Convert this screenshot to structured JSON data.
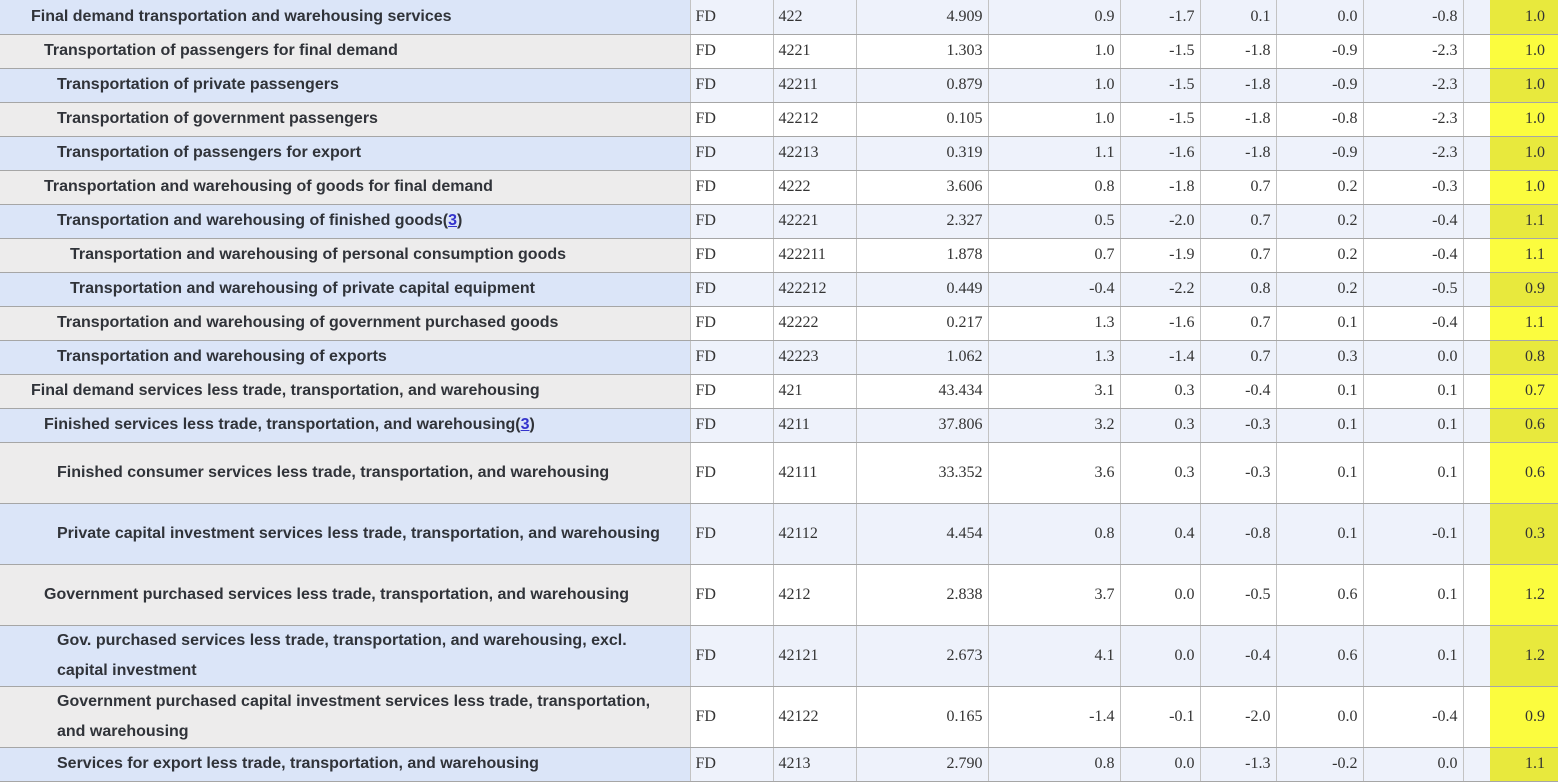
{
  "colors": {
    "row_name_blue": "#dbe5f8",
    "row_name_gray": "#edecec",
    "cell_blue": "#eef2fb",
    "cell_white": "#ffffff",
    "highlight_on_blue": "#e8e93d",
    "highlight_on_white": "#fbfc3e",
    "border_horizontal": "#a6a6a6",
    "border_vertical": "#c3c3c3",
    "item_text": "#303339",
    "data_text": "#333333",
    "footnote_link": "#3333cc"
  },
  "table": {
    "rows": [
      {
        "name": "Final demand transportation and warehousing services",
        "indent": 1,
        "group": "FD",
        "code": "422",
        "relative_importance": "4.909",
        "pct_changes": [
          "0.9",
          "-1.7",
          "0.1",
          "0.0",
          "-0.8"
        ],
        "highlighted": "1.0",
        "footnote": null
      },
      {
        "name": "Transportation of passengers for final demand",
        "indent": 2,
        "group": "FD",
        "code": "4221",
        "relative_importance": "1.303",
        "pct_changes": [
          "1.0",
          "-1.5",
          "-1.8",
          "-0.9",
          "-2.3"
        ],
        "highlighted": "1.0",
        "footnote": null
      },
      {
        "name": "Transportation of private passengers",
        "indent": 3,
        "group": "FD",
        "code": "42211",
        "relative_importance": "0.879",
        "pct_changes": [
          "1.0",
          "-1.5",
          "-1.8",
          "-0.9",
          "-2.3"
        ],
        "highlighted": "1.0",
        "footnote": null
      },
      {
        "name": "Transportation of government passengers",
        "indent": 3,
        "group": "FD",
        "code": "42212",
        "relative_importance": "0.105",
        "pct_changes": [
          "1.0",
          "-1.5",
          "-1.8",
          "-0.8",
          "-2.3"
        ],
        "highlighted": "1.0",
        "footnote": null
      },
      {
        "name": "Transportation of passengers for export",
        "indent": 3,
        "group": "FD",
        "code": "42213",
        "relative_importance": "0.319",
        "pct_changes": [
          "1.1",
          "-1.6",
          "-1.8",
          "-0.9",
          "-2.3"
        ],
        "highlighted": "1.0",
        "footnote": null
      },
      {
        "name": "Transportation and warehousing of goods for final demand",
        "indent": 2,
        "group": "FD",
        "code": "4222",
        "relative_importance": "3.606",
        "pct_changes": [
          "0.8",
          "-1.8",
          "0.7",
          "0.2",
          "-0.3"
        ],
        "highlighted": "1.0",
        "footnote": null
      },
      {
        "name": "Transportation and warehousing of finished goods",
        "indent": 3,
        "group": "FD",
        "code": "42221",
        "relative_importance": "2.327",
        "pct_changes": [
          "0.5",
          "-2.0",
          "0.7",
          "0.2",
          "-0.4"
        ],
        "highlighted": "1.1",
        "footnote": "3"
      },
      {
        "name": "Transportation and warehousing of personal consumption goods",
        "indent": 4,
        "group": "FD",
        "code": "422211",
        "relative_importance": "1.878",
        "pct_changes": [
          "0.7",
          "-1.9",
          "0.7",
          "0.2",
          "-0.4"
        ],
        "highlighted": "1.1",
        "footnote": null
      },
      {
        "name": "Transportation and warehousing of private capital equipment",
        "indent": 4,
        "group": "FD",
        "code": "422212",
        "relative_importance": "0.449",
        "pct_changes": [
          "-0.4",
          "-2.2",
          "0.8",
          "0.2",
          "-0.5"
        ],
        "highlighted": "0.9",
        "footnote": null
      },
      {
        "name": "Transportation and warehousing of government purchased goods",
        "indent": 3,
        "group": "FD",
        "code": "42222",
        "relative_importance": "0.217",
        "pct_changes": [
          "1.3",
          "-1.6",
          "0.7",
          "0.1",
          "-0.4"
        ],
        "highlighted": "1.1",
        "footnote": null
      },
      {
        "name": "Transportation and warehousing of exports",
        "indent": 3,
        "group": "FD",
        "code": "42223",
        "relative_importance": "1.062",
        "pct_changes": [
          "1.3",
          "-1.4",
          "0.7",
          "0.3",
          "0.0"
        ],
        "highlighted": "0.8",
        "footnote": null
      },
      {
        "name": "Final demand services less trade, transportation, and warehousing",
        "indent": 1,
        "group": "FD",
        "code": "421",
        "relative_importance": "43.434",
        "pct_changes": [
          "3.1",
          "0.3",
          "-0.4",
          "0.1",
          "0.1"
        ],
        "highlighted": "0.7",
        "footnote": null
      },
      {
        "name": "Finished services less trade, transportation, and warehousing",
        "indent": 2,
        "group": "FD",
        "code": "4211",
        "relative_importance": "37.806",
        "pct_changes": [
          "3.2",
          "0.3",
          "-0.3",
          "0.1",
          "0.1"
        ],
        "highlighted": "0.6",
        "footnote": "3"
      },
      {
        "name": "Finished consumer services less trade, transportation, and warehousing",
        "indent": 3,
        "group": "FD",
        "code": "42111",
        "relative_importance": "33.352",
        "pct_changes": [
          "3.6",
          "0.3",
          "-0.3",
          "0.1",
          "0.1"
        ],
        "highlighted": "0.6",
        "footnote": null
      },
      {
        "name": "Private capital investment services less trade, transportation, and warehousing",
        "indent": 3,
        "group": "FD",
        "code": "42112",
        "relative_importance": "4.454",
        "pct_changes": [
          "0.8",
          "0.4",
          "-0.8",
          "0.1",
          "-0.1"
        ],
        "highlighted": "0.3",
        "footnote": null
      },
      {
        "name": "Government purchased services less trade, transportation, and warehousing",
        "indent": 2,
        "group": "FD",
        "code": "4212",
        "relative_importance": "2.838",
        "pct_changes": [
          "3.7",
          "0.0",
          "-0.5",
          "0.6",
          "0.1"
        ],
        "highlighted": "1.2",
        "footnote": null
      },
      {
        "name": "Gov. purchased services less trade, transportation, and warehousing, excl. capital investment",
        "indent": 3,
        "group": "FD",
        "code": "42121",
        "relative_importance": "2.673",
        "pct_changes": [
          "4.1",
          "0.0",
          "-0.4",
          "0.6",
          "0.1"
        ],
        "highlighted": "1.2",
        "footnote": null
      },
      {
        "name": "Government purchased capital investment services less trade, transportation, and warehousing",
        "indent": 3,
        "group": "FD",
        "code": "42122",
        "relative_importance": "0.165",
        "pct_changes": [
          "-1.4",
          "-0.1",
          "-2.0",
          "0.0",
          "-0.4"
        ],
        "highlighted": "0.9",
        "footnote": null
      },
      {
        "name": "Services for export less trade, transportation, and warehousing",
        "indent": 3,
        "group": "FD",
        "code": "4213",
        "relative_importance": "2.790",
        "pct_changes": [
          "0.8",
          "0.0",
          "-1.3",
          "-0.2",
          "0.0"
        ],
        "highlighted": "1.1",
        "footnote": null
      }
    ]
  }
}
